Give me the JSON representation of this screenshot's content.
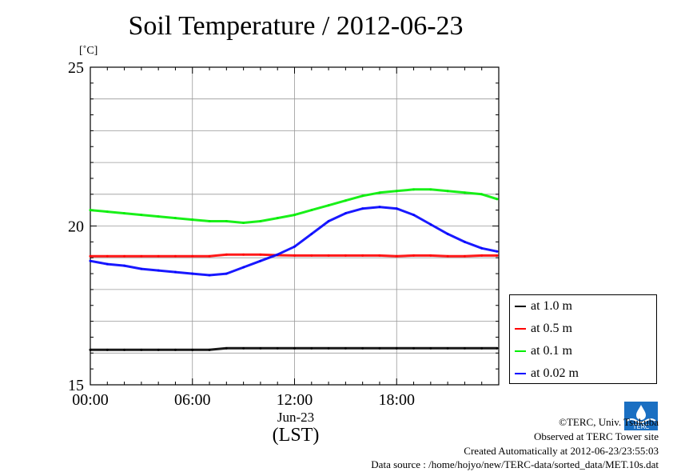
{
  "title": "Soil Temperature / 2012-06-23",
  "y_unit": "[˚C]",
  "x_date": "Jun-23",
  "x_label": "(LST)",
  "credits": {
    "copyright": "©TERC, Univ. Tsukuba",
    "observed": "Observed at TERC Tower site",
    "created": "Created Automatically at 2012-06-23/23:55:03",
    "source": "Data source : /home/hojyo/new/TERC-data/sorted_data/MET.10s.dat"
  },
  "chart_data": {
    "type": "line",
    "title": "Soil Temperature / 2012-06-23",
    "xlabel": "(LST)",
    "ylabel": "[˚C]",
    "xlim": [
      0,
      24
    ],
    "ylim": [
      15,
      25
    ],
    "x_ticks": [
      0,
      6,
      12,
      18
    ],
    "x_tick_labels": [
      "00:00",
      "06:00",
      "12:00",
      "18:00"
    ],
    "y_ticks": [
      15,
      20,
      25
    ],
    "y_tick_labels": [
      "15",
      "20",
      "25"
    ],
    "grid": true,
    "legend_position": "bottom-right outside",
    "x": [
      0,
      1,
      2,
      3,
      4,
      5,
      6,
      7,
      8,
      9,
      10,
      11,
      12,
      13,
      14,
      15,
      16,
      17,
      18,
      19,
      20,
      21,
      22,
      23,
      23.9
    ],
    "series": [
      {
        "name": "at 1.0 m",
        "color": "#000000",
        "values": [
          16.1,
          16.1,
          16.1,
          16.1,
          16.1,
          16.1,
          16.1,
          16.1,
          16.15,
          16.15,
          16.15,
          16.15,
          16.15,
          16.15,
          16.15,
          16.15,
          16.15,
          16.15,
          16.15,
          16.15,
          16.15,
          16.15,
          16.15,
          16.15,
          16.15
        ]
      },
      {
        "name": "at 0.5 m",
        "color": "#ff0000",
        "values": [
          19.05,
          19.05,
          19.05,
          19.05,
          19.05,
          19.05,
          19.05,
          19.05,
          19.1,
          19.1,
          19.1,
          19.08,
          19.07,
          19.07,
          19.07,
          19.07,
          19.07,
          19.07,
          19.05,
          19.07,
          19.07,
          19.05,
          19.05,
          19.07,
          19.07
        ]
      },
      {
        "name": "at 0.1 m",
        "color": "#00ee00",
        "values": [
          20.5,
          20.45,
          20.4,
          20.35,
          20.3,
          20.25,
          20.2,
          20.15,
          20.15,
          20.1,
          20.15,
          20.25,
          20.35,
          20.5,
          20.65,
          20.8,
          20.95,
          21.05,
          21.1,
          21.15,
          21.15,
          21.1,
          21.05,
          21.0,
          20.85
        ]
      },
      {
        "name": "at 0.02 m",
        "color": "#0000ff",
        "values": [
          18.9,
          18.8,
          18.75,
          18.65,
          18.6,
          18.55,
          18.5,
          18.45,
          18.5,
          18.7,
          18.9,
          19.1,
          19.35,
          19.75,
          20.15,
          20.4,
          20.55,
          20.6,
          20.55,
          20.35,
          20.05,
          19.75,
          19.5,
          19.3,
          19.2
        ]
      }
    ]
  }
}
